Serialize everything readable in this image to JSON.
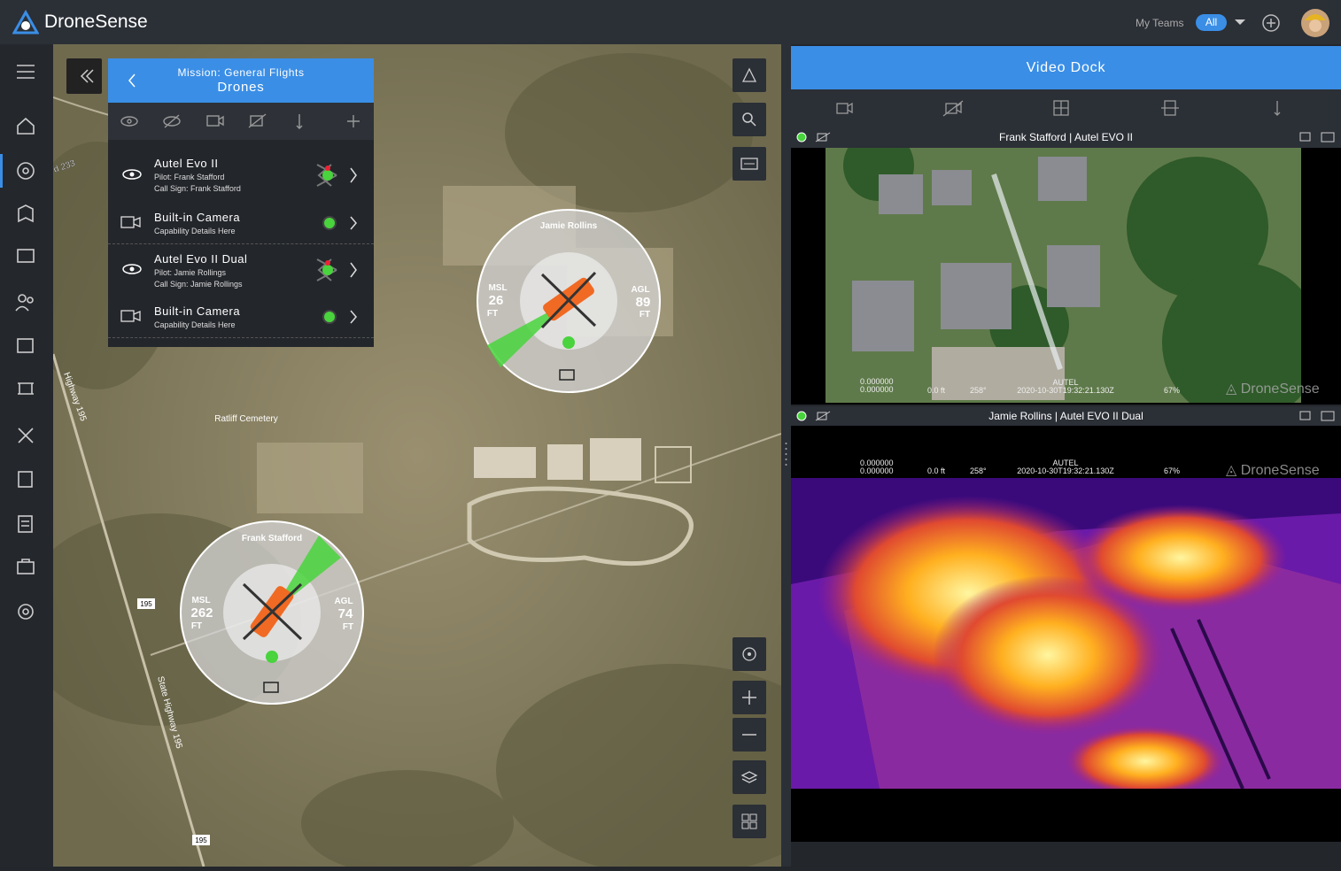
{
  "header": {
    "brand": "DroneSense",
    "my_teams": "My Teams",
    "team_filter": "All"
  },
  "drone_panel": {
    "mission": "Mission: General Flights",
    "title": "Drones",
    "items": [
      {
        "name": "Autel Evo II",
        "pilot": "Pilot: Frank Stafford",
        "call_sign": "Call Sign: Frank Stafford"
      },
      {
        "name": "Built-in Camera",
        "details": "Capability Details Here"
      },
      {
        "name": "Autel Evo II Dual",
        "pilot": "Pilot: Jamie Rollings",
        "call_sign": "Call Sign: Jamie Rollings"
      },
      {
        "name": "Built-in Camera",
        "details": "Capability Details Here"
      }
    ]
  },
  "map": {
    "labels": [
      "d 233",
      "Highway 195",
      "Ratliff Cemetery",
      "195",
      "State Highway 195",
      "195"
    ],
    "drones": [
      {
        "pilot": "Jamie Rollins",
        "msl_label": "MSL",
        "msl": 26,
        "agl_label": "AGL",
        "agl": 89,
        "msl_unit": "FT",
        "agl_unit": "FT"
      },
      {
        "pilot": "Frank Stafford",
        "msl_label": "MSL",
        "msl": 262,
        "agl_label": "AGL",
        "agl": 74,
        "msl_unit": "FT",
        "agl_unit": "FT"
      }
    ]
  },
  "video_dock": {
    "title": "Video Dock",
    "feeds": [
      {
        "title": "Frank Stafford | Autel EVO II",
        "lat": "0.000000",
        "lon": "0.000000",
        "altitude": "0.0 ft",
        "heading": "258°",
        "source": "AUTEL",
        "time": "2020-10-30T19:32:21.130Z",
        "zoom": "67%",
        "watermark": "DroneSense"
      },
      {
        "title": "Jamie Rollins | Autel EVO II Dual",
        "lat": "0.000000",
        "lon": "0.000000",
        "altitude": "0.0 ft",
        "heading": "258°",
        "source": "AUTEL",
        "time": "2020-10-30T19:32:21.130Z",
        "zoom": "67%",
        "watermark": "DroneSense"
      }
    ]
  }
}
